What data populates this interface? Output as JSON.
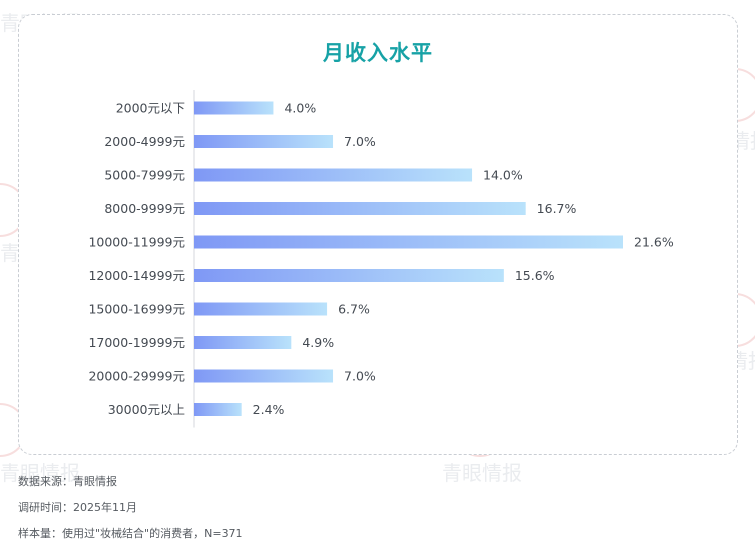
{
  "chart_data": {
    "type": "bar",
    "orientation": "horizontal",
    "title": "月收入水平",
    "categories": [
      "2000元以下",
      "2000-4999元",
      "5000-7999元",
      "8000-9999元",
      "10000-11999元",
      "12000-14999元",
      "15000-16999元",
      "17000-19999元",
      "20000-29999元",
      "30000元以上"
    ],
    "values": [
      4.0,
      7.0,
      14.0,
      16.7,
      21.6,
      15.6,
      6.7,
      4.9,
      7.0,
      2.4
    ],
    "value_labels": [
      "4.0%",
      "7.0%",
      "14.0%",
      "16.7%",
      "21.6%",
      "15.6%",
      "6.7%",
      "4.9%",
      "7.0%",
      "2.4%"
    ],
    "unit": "%",
    "xlim": [
      0,
      21.6
    ],
    "grid": false,
    "colors": {
      "bar_start": "#7f98f5",
      "bar_end": "#b9e2fb",
      "title": "#17a2a6"
    }
  },
  "footer": {
    "source": "数据来源：青眼情报",
    "time": "调研时间：2025年11月",
    "sample": "样本量：使用过\"妆械结合\"的消费者，N=371"
  },
  "watermark": {
    "text": "青眼情报"
  }
}
